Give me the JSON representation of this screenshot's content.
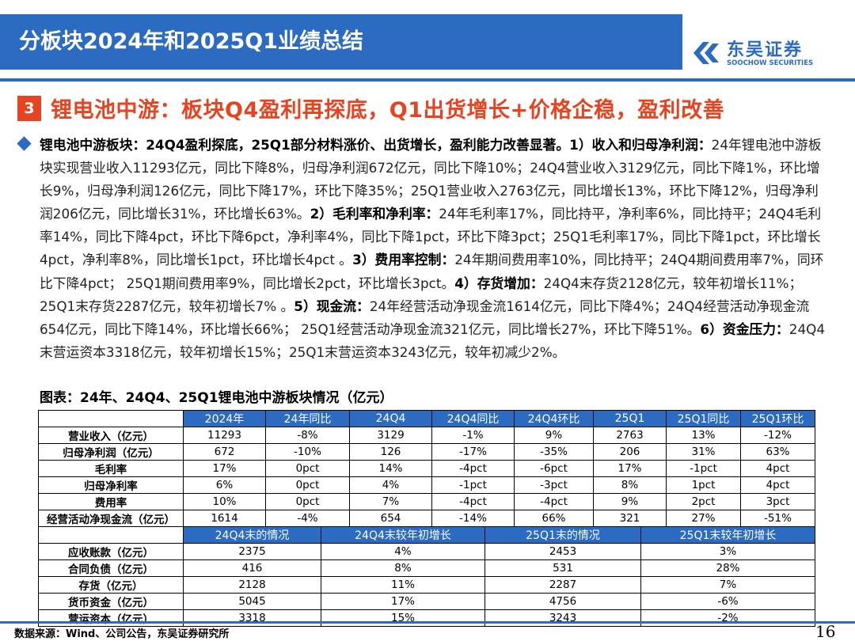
{
  "header": {
    "title": "分板块2024年和2025Q1业绩总结",
    "logo_cn": "东吴证券",
    "logo_en": "SOOCHOW SECURITIES"
  },
  "section": {
    "number": "3",
    "title": "锂电池中游：板块Q4盈利再探底，Q1出货增长+价格企稳，盈利改善"
  },
  "paragraph": [
    {
      "t": "锂电池中游板块：24Q4盈利探底，25Q1部分材料涨价、出货增长，盈利能力改善显著。1）收入和归母净利润：",
      "b": true
    },
    {
      "t": "24年锂电池中游板块实现营业收入11293亿元，同比下降8%，归母净利润672亿元，同比下降10%；24Q4营业收入3129亿元，同比下降1%，环比增长9%，归母净利润126亿元，同比下降17%，环比下降35%；25Q1营业收入2763亿元，同比增长13%，环比下降12%，归母净利润206亿元，同比增长31%，环比增长63%。",
      "b": false
    },
    {
      "t": "2）毛利率和净利率：",
      "b": true
    },
    {
      "t": "24年毛利率17%，同比持平，净利率6%，同比持平；24Q4毛利率14%，同比下降4pct，环比下降6pct，净利率4%，同比下降1pct，环比下降3pct；25Q1毛利率17%，同比下降1pct，环比增长4pct，净利率8%，同比增长1pct，环比增长4pct 。",
      "b": false
    },
    {
      "t": "3）费用率控制：",
      "b": true
    },
    {
      "t": "24年期间费用率10%，同比持平；24Q4期间费用率7%，同环比下降4pct； 25Q1期间费用率9%，同比增长2pct，环比增长3pct。",
      "b": false
    },
    {
      "t": "4）存货增加：",
      "b": true
    },
    {
      "t": "24Q4末存货2128亿元，较年初增长11%； 25Q1末存货2287亿元，较年初增长7% 。",
      "b": false
    },
    {
      "t": "5）现金流：",
      "b": true
    },
    {
      "t": "24年经营活动净现金流1614亿元，同比下降4%；24Q4经营活动净现金流654亿元，同比下降14%，环比增长66%； 25Q1经营活动净现金流321亿元，同比增长27%，环比下降51%。",
      "b": false
    },
    {
      "t": "6）资金压力：",
      "b": true
    },
    {
      "t": "24Q4末营运资本3318亿元，较年初增长15%；25Q1末营运资本3243亿元，较年初减少2%。",
      "b": false
    }
  ],
  "figure": {
    "caption": "图表：24年、24Q4、25Q1锂电池中游板块情况（亿元）"
  },
  "table1": {
    "headers": [
      "",
      "2024年",
      "24年同比",
      "24Q4",
      "24Q4同比",
      "24Q4环比",
      "25Q1",
      "25Q1同比",
      "25Q1环比"
    ],
    "rows": [
      [
        "营业收入（亿元）",
        "11293",
        "-8%",
        "3129",
        "-1%",
        "9%",
        "2763",
        "13%",
        "-12%"
      ],
      [
        "归母净利润（亿元）",
        "672",
        "-10%",
        "126",
        "-17%",
        "-35%",
        "206",
        "31%",
        "63%"
      ],
      [
        "毛利率",
        "17%",
        "0pct",
        "14%",
        "-4pct",
        "-6pct",
        "17%",
        "-1pct",
        "4pct"
      ],
      [
        "归母净利率",
        "6%",
        "0pct",
        "4%",
        "-1pct",
        "-3pct",
        "8%",
        "1pct",
        "4pct"
      ],
      [
        "费用率",
        "10%",
        "0pct",
        "7%",
        "-4pct",
        "-4pct",
        "9%",
        "2pct",
        "3pct"
      ],
      [
        "经营活动净现金流（亿元）",
        "1614",
        "-4%",
        "654",
        "-14%",
        "66%",
        "321",
        "27%",
        "-51%"
      ]
    ]
  },
  "table2": {
    "headers": [
      "",
      "24Q4末的情况",
      "24Q4末较年初增长",
      "25Q1末的情况",
      "25Q1末较年初增长"
    ],
    "rows": [
      [
        "应收账款（亿元）",
        "2375",
        "4%",
        "2453",
        "3%"
      ],
      [
        "合同负债（亿元）",
        "416",
        "8%",
        "531",
        "28%"
      ],
      [
        "存货（亿元）",
        "2128",
        "11%",
        "2287",
        "7%"
      ],
      [
        "货币资金（亿元）",
        "5045",
        "17%",
        "4756",
        "-6%"
      ],
      [
        "营运资本（亿元）",
        "3318",
        "15%",
        "3243",
        "-2%"
      ]
    ]
  },
  "footer": {
    "source": "数据来源：Wind、公司公告，东吴证券研究所",
    "page": "16"
  },
  "colors": {
    "brand_blue": "#2b6bc1",
    "accent_red": "#e64420"
  }
}
